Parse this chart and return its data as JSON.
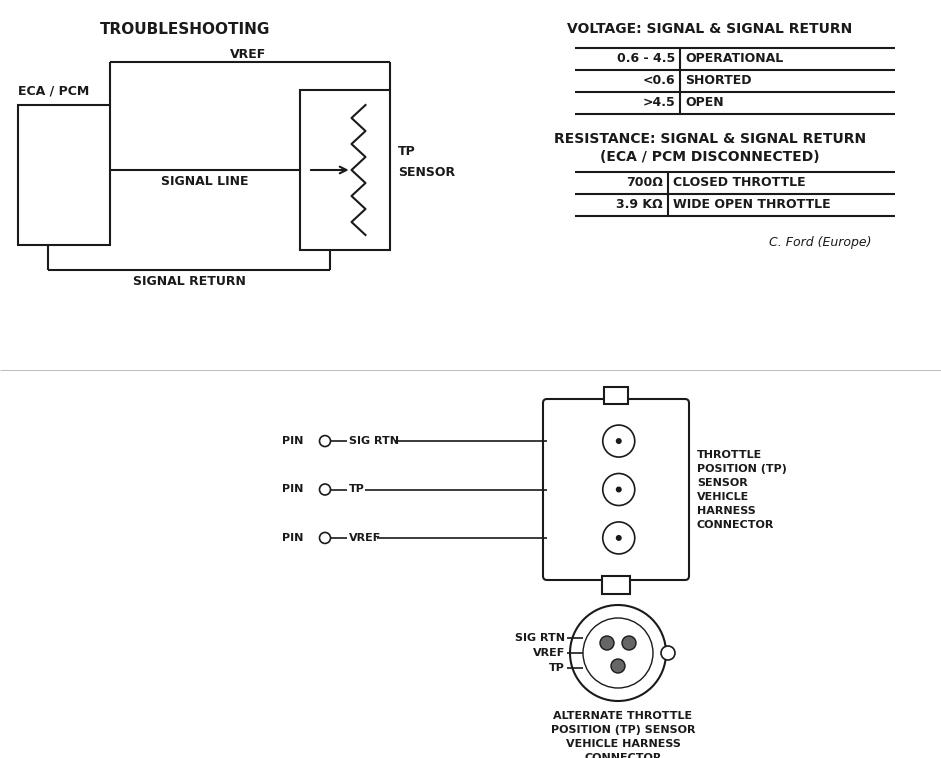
{
  "bg_color": "#ffffff",
  "line_color": "#1a1a1a",
  "title_troubleshooting": "TROUBLESHOOTING",
  "label_vref": "VREF",
  "label_eca": "ECA / PCM",
  "label_signal_line": "SIGNAL LINE",
  "label_signal_return": "SIGNAL RETURN",
  "label_tp_sensor": "TP\nSENSOR",
  "voltage_title": "VOLTAGE: SIGNAL & SIGNAL RETURN",
  "voltage_rows": [
    [
      "0.6 - 4.5",
      "OPERATIONAL"
    ],
    [
      "<0.6",
      "SHORTED"
    ],
    [
      ">4.5",
      "OPEN"
    ]
  ],
  "resistance_title1": "RESISTANCE: SIGNAL & SIGNAL RETURN",
  "resistance_title2": "(ECA / PCM DISCONNECTED)",
  "resistance_rows": [
    [
      "700Ω",
      "CLOSED THROTTLE"
    ],
    [
      "3.9 KΩ",
      "WIDE OPEN THROTTLE"
    ]
  ],
  "credit": "C. Ford (Europe)",
  "pin_labels": [
    "SIG RTN",
    "TP",
    "VREF"
  ],
  "connector1_label": "THROTTLE\nPOSITION (TP)\nSENSOR\nVEHICLE\nHARNESS\nCONNECTOR",
  "connector2_labels": [
    "SIG RTN",
    "VREF",
    "TP"
  ],
  "connector2_label": "ALTERNATE THROTTLE\nPOSITION (TP) SENSOR\nVEHICLE HARNESS\nCONNECTOR"
}
